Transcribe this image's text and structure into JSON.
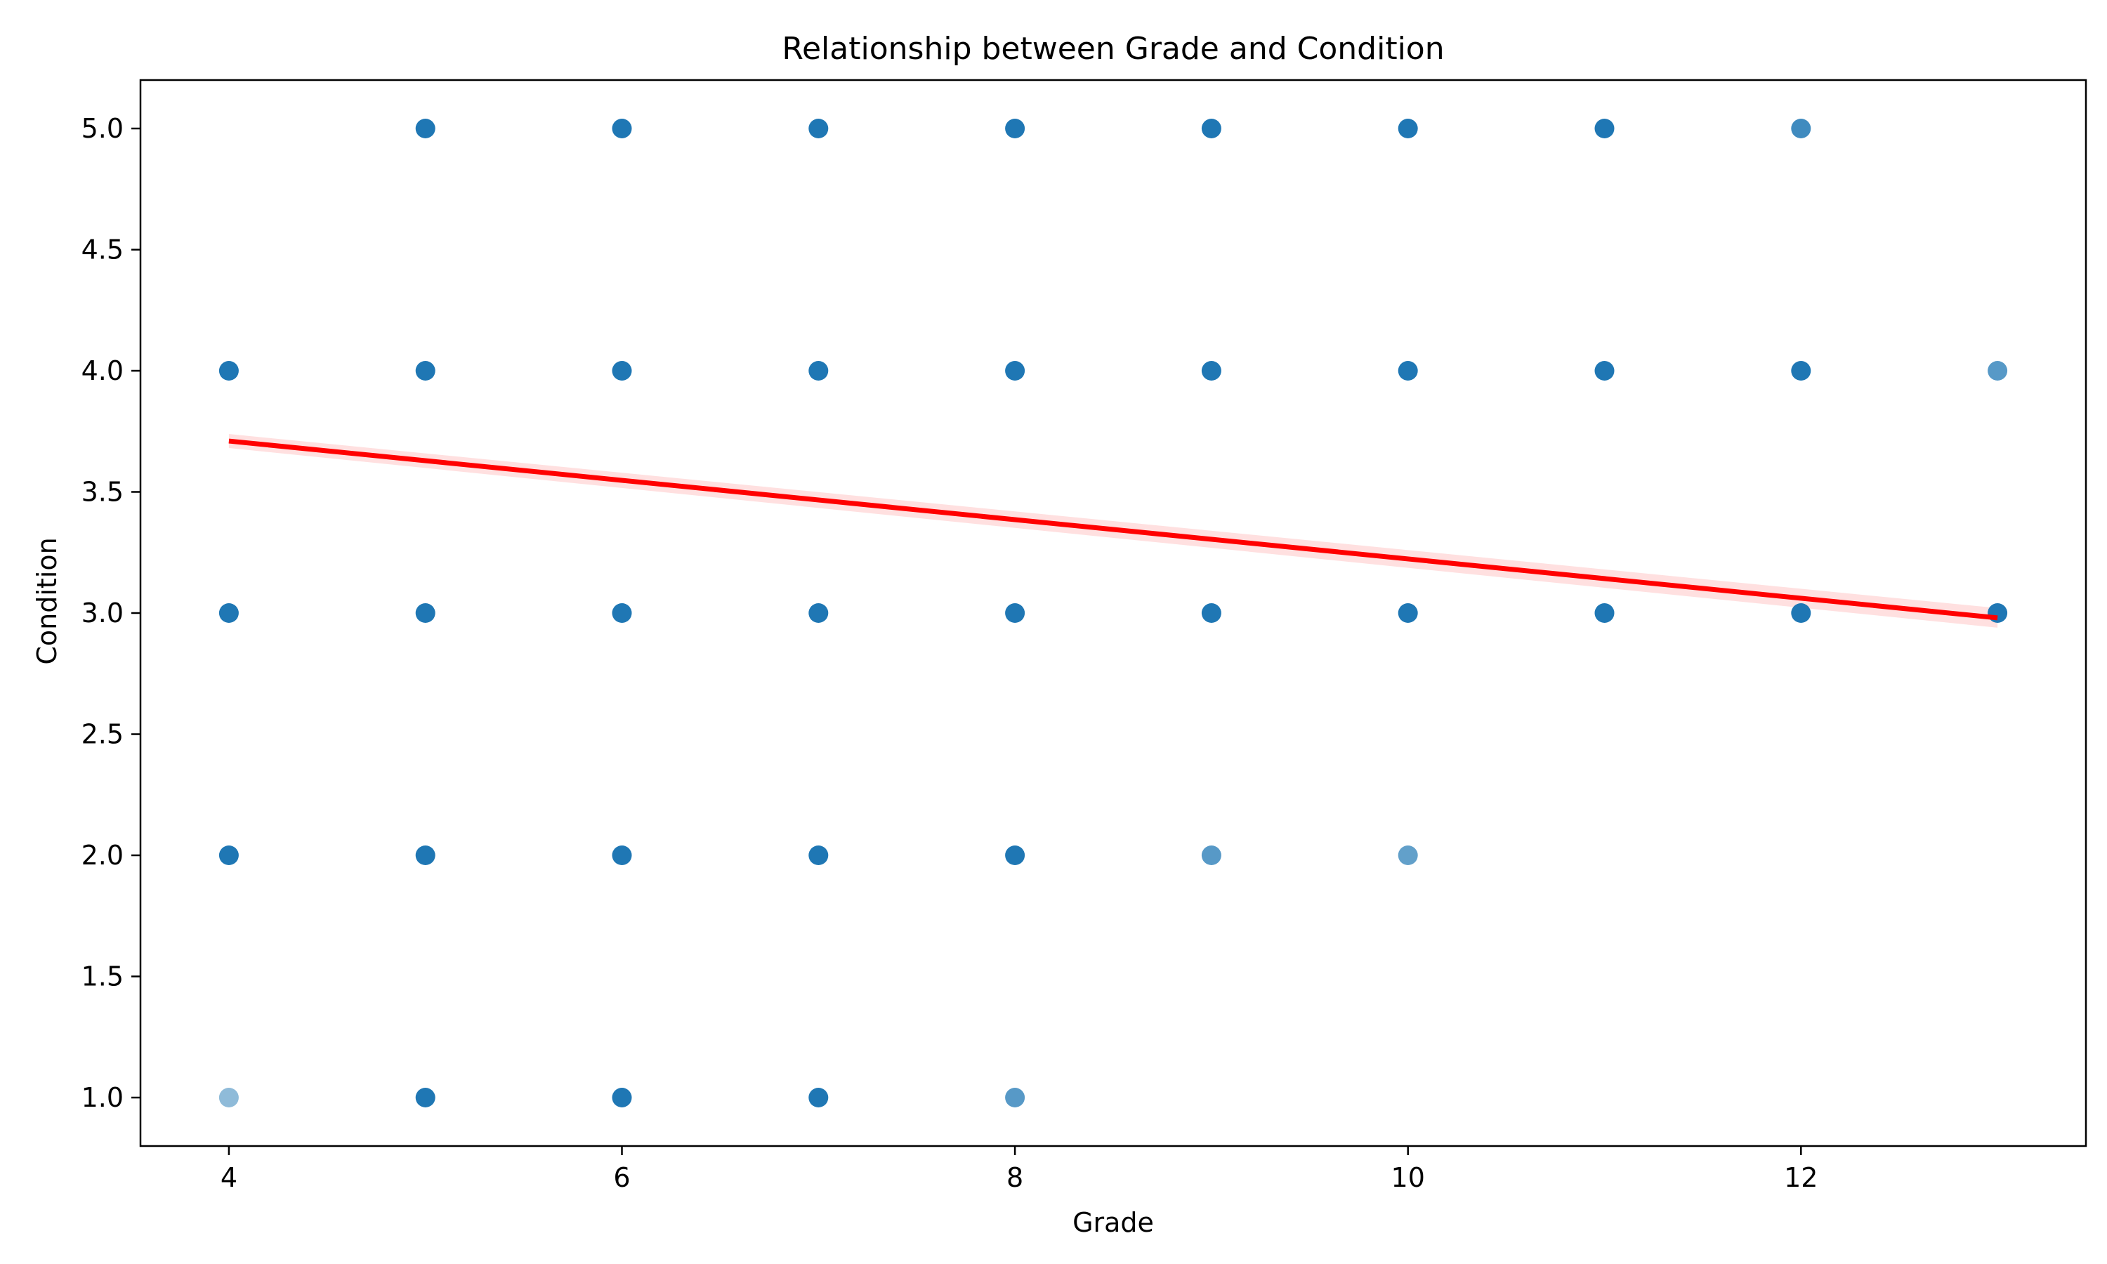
{
  "chart_data": {
    "type": "scatter",
    "title": "Relationship between Grade and Condition",
    "xlabel": "Grade",
    "ylabel": "Condition",
    "xlim": [
      3.55,
      13.45
    ],
    "ylim": [
      0.8,
      5.2
    ],
    "xticks": [
      4,
      6,
      8,
      10,
      12
    ],
    "xtick_labels": [
      "4",
      "6",
      "8",
      "10",
      "12"
    ],
    "yticks": [
      1.0,
      1.5,
      2.0,
      2.5,
      3.0,
      3.5,
      4.0,
      4.5,
      5.0
    ],
    "ytick_labels": [
      "1.0",
      "1.5",
      "2.0",
      "2.5",
      "3.0",
      "3.5",
      "4.0",
      "4.5",
      "5.0"
    ],
    "grid": false,
    "point_color": "#1f77b4",
    "line_color": "#ff0000",
    "points": [
      {
        "x": 4,
        "y": 4.0,
        "opacity": 1.0
      },
      {
        "x": 4,
        "y": 3.0,
        "opacity": 1.0
      },
      {
        "x": 4,
        "y": 2.0,
        "opacity": 1.0
      },
      {
        "x": 4,
        "y": 1.0,
        "opacity": 0.5
      },
      {
        "x": 5,
        "y": 5.0,
        "opacity": 1.0
      },
      {
        "x": 5,
        "y": 4.0,
        "opacity": 1.0
      },
      {
        "x": 5,
        "y": 3.0,
        "opacity": 1.0
      },
      {
        "x": 5,
        "y": 2.0,
        "opacity": 1.0
      },
      {
        "x": 5,
        "y": 1.0,
        "opacity": 1.0
      },
      {
        "x": 6,
        "y": 5.0,
        "opacity": 1.0
      },
      {
        "x": 6,
        "y": 4.0,
        "opacity": 1.0
      },
      {
        "x": 6,
        "y": 3.0,
        "opacity": 1.0
      },
      {
        "x": 6,
        "y": 2.0,
        "opacity": 1.0
      },
      {
        "x": 6,
        "y": 1.0,
        "opacity": 1.0
      },
      {
        "x": 7,
        "y": 5.0,
        "opacity": 1.0
      },
      {
        "x": 7,
        "y": 4.0,
        "opacity": 1.0
      },
      {
        "x": 7,
        "y": 3.0,
        "opacity": 1.0
      },
      {
        "x": 7,
        "y": 2.0,
        "opacity": 1.0
      },
      {
        "x": 7,
        "y": 1.0,
        "opacity": 1.0
      },
      {
        "x": 8,
        "y": 5.0,
        "opacity": 1.0
      },
      {
        "x": 8,
        "y": 4.0,
        "opacity": 1.0
      },
      {
        "x": 8,
        "y": 3.0,
        "opacity": 1.0
      },
      {
        "x": 8,
        "y": 2.0,
        "opacity": 1.0
      },
      {
        "x": 8,
        "y": 1.0,
        "opacity": 0.75
      },
      {
        "x": 9,
        "y": 5.0,
        "opacity": 1.0
      },
      {
        "x": 9,
        "y": 4.0,
        "opacity": 1.0
      },
      {
        "x": 9,
        "y": 3.0,
        "opacity": 1.0
      },
      {
        "x": 9,
        "y": 2.0,
        "opacity": 0.75
      },
      {
        "x": 10,
        "y": 5.0,
        "opacity": 1.0
      },
      {
        "x": 10,
        "y": 4.0,
        "opacity": 1.0
      },
      {
        "x": 10,
        "y": 3.0,
        "opacity": 1.0
      },
      {
        "x": 10,
        "y": 2.0,
        "opacity": 0.7
      },
      {
        "x": 11,
        "y": 5.0,
        "opacity": 1.0
      },
      {
        "x": 11,
        "y": 4.0,
        "opacity": 1.0
      },
      {
        "x": 11,
        "y": 3.0,
        "opacity": 1.0
      },
      {
        "x": 12,
        "y": 5.0,
        "opacity": 0.85
      },
      {
        "x": 12,
        "y": 4.0,
        "opacity": 1.0
      },
      {
        "x": 12,
        "y": 3.0,
        "opacity": 1.0
      },
      {
        "x": 13,
        "y": 4.0,
        "opacity": 0.75
      },
      {
        "x": 13,
        "y": 3.0,
        "opacity": 1.0
      }
    ],
    "regression_line": {
      "x": [
        4,
        13
      ],
      "y": [
        3.71,
        2.98
      ]
    }
  }
}
